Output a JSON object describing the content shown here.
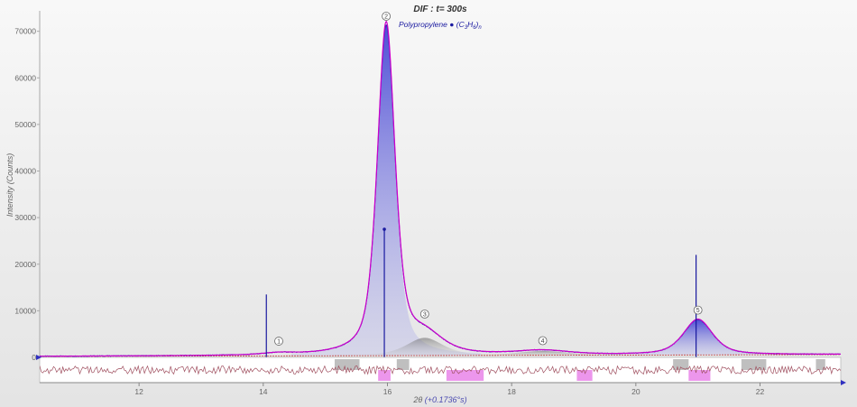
{
  "chart_data": {
    "type": "line",
    "title_prefix": "DIF",
    "title_time": "t=  300s",
    "ylabel": "Intensity (Counts)",
    "xlabel_symbol": "2θ",
    "xlabel_offset": "(+0.1736°s)",
    "xlim": [
      10.4,
      23.3
    ],
    "ylim": [
      0,
      74000
    ],
    "x_ticks": [
      12,
      14,
      16,
      18,
      20,
      22
    ],
    "y_ticks": [
      0,
      10000,
      20000,
      30000,
      40000,
      50000,
      60000,
      70000
    ],
    "phase": {
      "name": "Polypropylene",
      "formula_prefix": "(C",
      "formula_sub1": "3",
      "formula_mid": "H",
      "formula_sub2": "6",
      "formula_suffix": ")",
      "formula_sub3": "n"
    },
    "peaks": [
      {
        "label": "1",
        "center": 14.25,
        "height": 400,
        "width": 0.3
      },
      {
        "label": "2",
        "center": 15.98,
        "height": 71000,
        "width": 0.17
      },
      {
        "label": "3",
        "center": 16.6,
        "height": 3800,
        "width": 0.35
      },
      {
        "label": "4",
        "center": 18.5,
        "height": 900,
        "width": 0.5
      },
      {
        "label": "5",
        "center": 21.0,
        "height": 7600,
        "width": 0.28
      }
    ],
    "reference_lines": [
      {
        "x": 14.05,
        "intensity": 13500
      },
      {
        "x": 15.95,
        "intensity": 27500
      },
      {
        "x": 20.97,
        "intensity": 22000
      }
    ],
    "background": {
      "start": 200,
      "end": 600
    },
    "colors": {
      "calculated": "#cc00cc",
      "fill": "#3535d0",
      "reference": "#1a1aa0",
      "difference": "#a05060",
      "difference_fill": "#e050e0"
    }
  }
}
